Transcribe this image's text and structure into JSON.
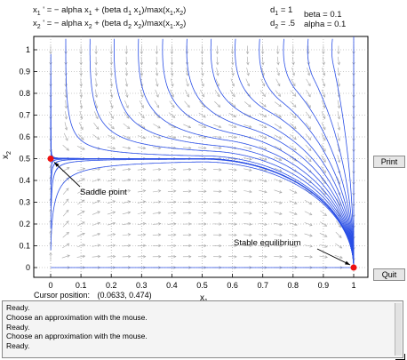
{
  "equations": {
    "line1": {
      "lhs": "x",
      "lhs_sub": "1",
      "rhs": " ' = − alpha x",
      "rhs_sub1": "1",
      "rhs_mid": " + (beta d",
      "rhs_sub2": "1",
      "rhs_mid2": " x",
      "rhs_sub3": "1",
      "rhs_end": ")/max(x",
      "rhs_sub4": "1",
      "rhs_end2": ",x",
      "rhs_sub5": "2",
      "rhs_end3": ")"
    },
    "line2": {
      "lhs": "x",
      "lhs_sub": "2",
      "rhs": " ' = − alpha x",
      "rhs_sub1": "2",
      "rhs_mid": " + (beta d",
      "rhs_sub2": "2",
      "rhs_mid2": " x",
      "rhs_sub3": "2",
      "rhs_end": ")/max(x",
      "rhs_sub4": "1",
      "rhs_end2": ".x",
      "rhs_sub5": "2",
      "rhs_end3": ")"
    }
  },
  "params": {
    "d1_label": "d",
    "d1_sub": "1",
    "d1_value": " = 1",
    "d2_label": "d",
    "d2_sub": "2",
    "d2_value": " = .5",
    "beta": "beta = 0.1",
    "alpha": "alpha = 0.1"
  },
  "axes": {
    "xlabel": "x",
    "xlabel_sub": "1",
    "ylabel": "x",
    "ylabel_sub": "2",
    "xticks": [
      "0",
      "0.1",
      "0.2",
      "0.3",
      "0.4",
      "0.5",
      "0.6",
      "0.7",
      "0.8",
      "0.9",
      "1"
    ],
    "yticks": [
      "0",
      "0.1",
      "0.2",
      "0.3",
      "0.4",
      "0.5",
      "0.6",
      "0.7",
      "0.8",
      "0.9",
      "1"
    ]
  },
  "annotations": {
    "saddle": "Saddle point",
    "stable": "Stable equilibrium"
  },
  "buttons": {
    "print": "Print",
    "quit": "Quit"
  },
  "cursor": {
    "label": "Cursor position:",
    "value": "(0.0633, 0.474)"
  },
  "log_lines": [
    "Ready.",
    "Choose an approximation with the mouse.",
    "Ready.",
    "Choose an approximation with the mouse.",
    "Ready."
  ],
  "colors": {
    "trajectory": "#2a4fe6",
    "field": "#a8a8a8",
    "equilibrium": "#ee1111",
    "grid": "#9a9a9a"
  },
  "points": {
    "saddle": [
      0,
      0.5
    ],
    "stable": [
      1,
      0
    ]
  }
}
